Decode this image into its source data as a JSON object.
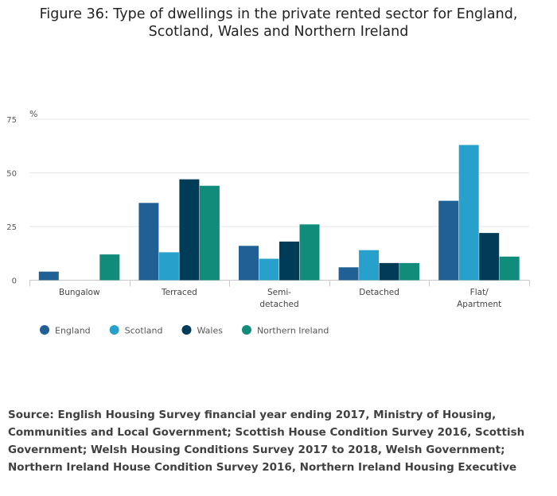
{
  "title": {
    "line1": "Figure 36: Type of dwellings in the private rented sector for England,",
    "line2": "Scotland, Wales and Northern Ireland"
  },
  "source": {
    "text": "Source: English Housing Survey financial year ending 2017, Ministry of Housing, Communities and Local Government; Scottish House Condition Survey 2016, Scottish Government; Welsh Housing Conditions Survey 2017 to 2018, Welsh Government; Northern Ireland House Condition Survey 2016, Northern Ireland Housing Executive"
  },
  "chart_data": {
    "type": "bar",
    "title": "Figure 36: Type of dwellings in the private rented sector for England, Scotland, Wales and Northern Ireland",
    "xlabel": "",
    "ylabel": "%",
    "ylim": [
      0,
      75
    ],
    "yticks": [
      0,
      25,
      50,
      75
    ],
    "grid": true,
    "legend_position": "bottom-left",
    "categories": [
      [
        "Bungalow"
      ],
      [
        "Terraced"
      ],
      [
        "Semi-",
        "detached"
      ],
      [
        "Detached"
      ],
      [
        "Flat/",
        "Apartment"
      ]
    ],
    "series": [
      {
        "name": "England",
        "color": "#206095",
        "values": [
          4,
          36,
          16,
          6,
          37
        ]
      },
      {
        "name": "Scotland",
        "color": "#27a0cc",
        "values": [
          0,
          13,
          10,
          14,
          63
        ]
      },
      {
        "name": "Wales",
        "color": "#003c57",
        "values": [
          0,
          47,
          18,
          8,
          22
        ]
      },
      {
        "name": "Northern Ireland",
        "color": "#118c7b",
        "values": [
          12,
          44,
          26,
          8,
          11
        ]
      }
    ]
  }
}
